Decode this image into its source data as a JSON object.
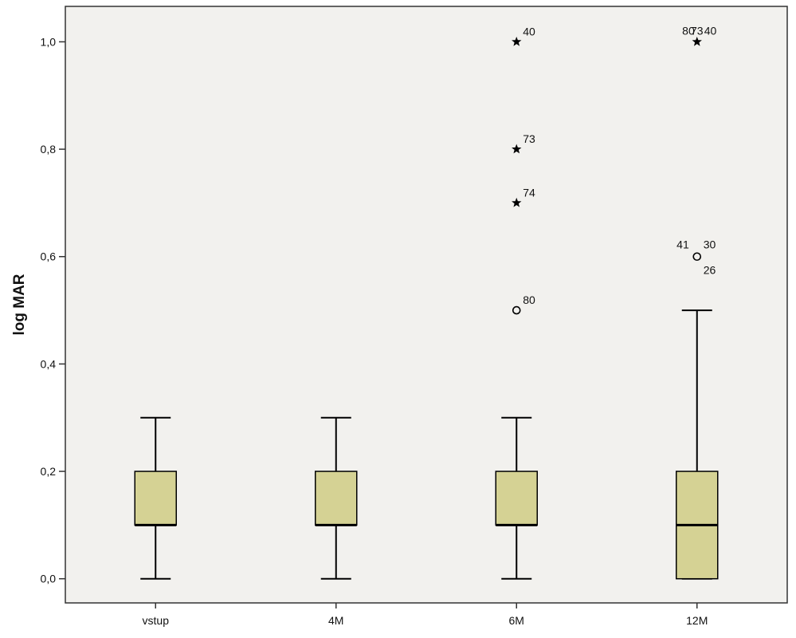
{
  "chart_data": {
    "type": "boxplot",
    "ylabel": "log MAR",
    "xlabel": "",
    "title": "",
    "ylim": [
      -0.045,
      1.066
    ],
    "yticks": [
      0.0,
      0.2,
      0.4,
      0.6,
      0.8,
      1.0
    ],
    "ytick_labels": [
      "0,0",
      "0,2",
      "0,4",
      "0,6",
      "0,8",
      "1,0"
    ],
    "grid": false,
    "colors": {
      "box_fill": "#d5d294",
      "plot_bg": "#f2f1ee",
      "stroke": "#000000"
    },
    "categories": [
      "vstup",
      "4M",
      "6M",
      "12M"
    ],
    "boxes": [
      {
        "category": "vstup",
        "whisker_low": 0.0,
        "q1": 0.1,
        "median": 0.1,
        "q3": 0.2,
        "whisker_high": 0.3,
        "outliers": []
      },
      {
        "category": "4M",
        "whisker_low": 0.0,
        "q1": 0.1,
        "median": 0.1,
        "q3": 0.2,
        "whisker_high": 0.3,
        "outliers": []
      },
      {
        "category": "6M",
        "whisker_low": 0.0,
        "q1": 0.1,
        "median": 0.1,
        "q3": 0.2,
        "whisker_high": 0.3,
        "outliers": [
          {
            "value": 1.0,
            "marker": "star",
            "labels": [
              "40"
            ]
          },
          {
            "value": 0.8,
            "marker": "star",
            "labels": [
              "73"
            ]
          },
          {
            "value": 0.7,
            "marker": "star",
            "labels": [
              "74"
            ]
          },
          {
            "value": 0.5,
            "marker": "circle",
            "labels": [
              "80"
            ]
          }
        ]
      },
      {
        "category": "12M",
        "whisker_low": 0.0,
        "q1": 0.0,
        "median": 0.1,
        "q3": 0.2,
        "whisker_high": 0.5,
        "outliers": [
          {
            "value": 1.0,
            "marker": "star",
            "labels": [
              "80",
              "73",
              "40"
            ]
          },
          {
            "value": 0.6,
            "marker": "circle",
            "labels": [
              "41",
              "30",
              "26"
            ]
          }
        ]
      }
    ]
  }
}
